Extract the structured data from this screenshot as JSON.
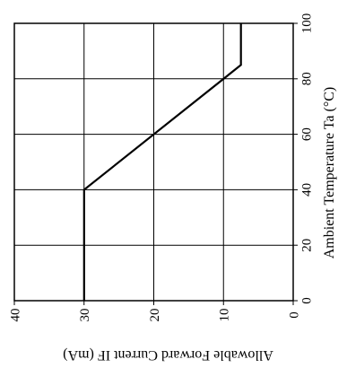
{
  "chart_data": {
    "type": "line",
    "orientation": "rotated-90",
    "title": "",
    "xlabel": "Ambient Temperature Ta (°C)",
    "ylabel": "Allowable Forward Current IF (mA)",
    "xlim": [
      0,
      100
    ],
    "ylim": [
      0,
      40
    ],
    "x_ticks": [
      "0",
      "20",
      "40",
      "60",
      "80",
      "100"
    ],
    "y_ticks": [
      "40",
      "30",
      "20",
      "10",
      "0"
    ],
    "grid": true,
    "series": [
      {
        "x": [
          0,
          40,
          85,
          100
        ],
        "y": [
          30,
          30,
          7.5,
          7.5
        ]
      }
    ]
  }
}
